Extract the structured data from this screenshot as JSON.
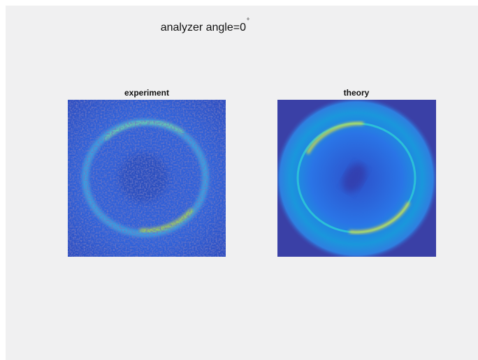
{
  "figure": {
    "title": "analyzer angle=0",
    "title_superscript": "°",
    "panels": [
      {
        "title": "experiment"
      },
      {
        "title": "theory"
      }
    ]
  }
}
